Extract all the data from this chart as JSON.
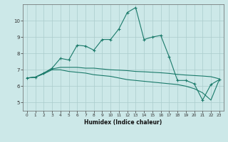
{
  "xlabel": "Humidex (Indice chaleur)",
  "bg_color": "#cce8e8",
  "grid_color": "#aacccc",
  "line_color": "#1a7a6a",
  "xlim": [
    -0.5,
    23.5
  ],
  "ylim": [
    4.5,
    11.0
  ],
  "yticks": [
    5,
    6,
    7,
    8,
    9,
    10
  ],
  "xticks": [
    0,
    1,
    2,
    3,
    4,
    5,
    6,
    7,
    8,
    9,
    10,
    11,
    12,
    13,
    14,
    15,
    16,
    17,
    18,
    19,
    20,
    21,
    22,
    23
  ],
  "line_peak": [
    6.5,
    6.55,
    6.8,
    7.1,
    7.7,
    7.6,
    8.5,
    8.45,
    8.2,
    8.85,
    8.85,
    9.5,
    10.5,
    10.8,
    8.85,
    9.0,
    9.1,
    7.8,
    6.35,
    6.35,
    6.15,
    5.15,
    6.1,
    6.4
  ],
  "line_upper": [
    6.5,
    6.55,
    6.8,
    7.05,
    7.15,
    7.15,
    7.15,
    7.1,
    7.1,
    7.05,
    7.0,
    6.98,
    6.95,
    6.9,
    6.88,
    6.85,
    6.82,
    6.78,
    6.72,
    6.68,
    6.65,
    6.62,
    6.58,
    6.45
  ],
  "line_lower": [
    6.5,
    6.55,
    6.75,
    7.0,
    7.0,
    6.9,
    6.85,
    6.8,
    6.7,
    6.65,
    6.6,
    6.5,
    6.4,
    6.35,
    6.3,
    6.25,
    6.2,
    6.15,
    6.1,
    6.0,
    5.85,
    5.6,
    5.15,
    6.4
  ]
}
